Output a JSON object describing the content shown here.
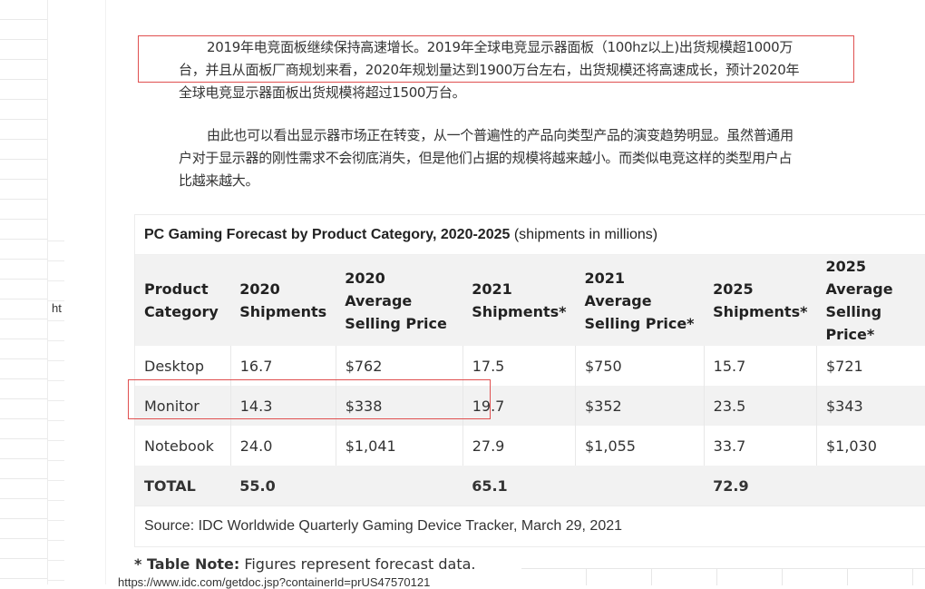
{
  "sheet": {
    "cell_text": "ht"
  },
  "paragraphs": [
    "2019年电竞面板继续保持高速增长。2019年全球电竞显示器面板（100hz以上)出货规模超1000万台，并且从面板厂商规划来看，2020年规划量达到1900万台左右，出货规模还将高速成长，预计2020年全球电竞显示器面板出货规模将超过1500万台。",
    "由此也可以看出显示器市场正在转变，从一个普遍性的产品向类型产品的演变趋势明显。虽然普通用户对于显示器的刚性需求不会彻底消失，但是他们占据的规模将越来越小。而类似电竞这样的类型用户占比越来越大。"
  ],
  "table": {
    "title_bold": "PC Gaming Forecast by Product Category, 2020-2025",
    "title_rest": " (shipments in millions)",
    "headers": [
      "Product Category",
      "2020 Shipments",
      "2020 Average Selling Price",
      "2021 Shipments*",
      "2021 Average Selling Price*",
      "2025 Shipments*",
      "2025 Average Selling Price*"
    ],
    "rows": [
      [
        "Desktop",
        "16.7",
        "$762",
        "17.5",
        "$750",
        "15.7",
        "$721"
      ],
      [
        "Monitor",
        "14.3",
        "$338",
        "19.7",
        "$352",
        "23.5",
        "$343"
      ],
      [
        "Notebook",
        "24.0",
        "$1,041",
        "27.9",
        "$1,055",
        "33.7",
        "$1,030"
      ],
      [
        "TOTAL",
        "55.0",
        "",
        "65.1",
        "",
        "72.9",
        ""
      ]
    ],
    "source": "Source: IDC Worldwide Quarterly Gaming Device Tracker, March 29, 2021"
  },
  "note": {
    "bold": "* Table Note:",
    "rest": " Figures represent forecast data."
  },
  "url": "https://www.idc.com/getdoc.jsp?containerId=prUS47570121",
  "colors": {
    "highlight_border": "#e05050",
    "header_bg": "#f2f2f2"
  }
}
